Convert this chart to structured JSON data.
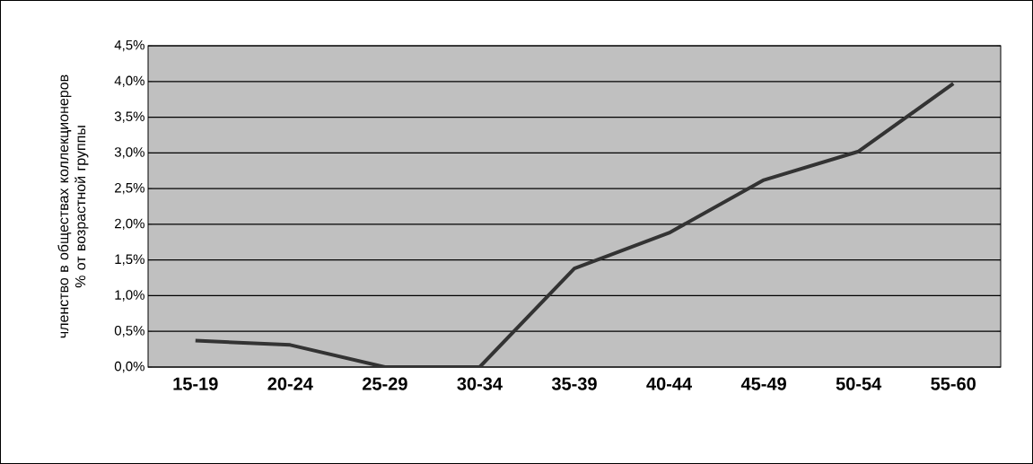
{
  "chart_data": {
    "type": "line",
    "ylabel": "членство в обществах коллекционеров % от возрастной группы",
    "categories": [
      "15-19",
      "20-24",
      "25-29",
      "30-34",
      "35-39",
      "40-44",
      "45-49",
      "50-54",
      "55-60"
    ],
    "series": [
      {
        "color": "#333333",
        "values": [
          0.37,
          0.31,
          0,
          0,
          1.38,
          1.88,
          2.62,
          3.02,
          3.97
        ]
      }
    ],
    "ylim": [
      0,
      4.5
    ],
    "yticks": [
      {
        "value": 0,
        "label": "0,0%"
      },
      {
        "value": 0.5,
        "label": "0,5%"
      },
      {
        "value": 1,
        "label": "1,0%"
      },
      {
        "value": 1.5,
        "label": "1,5%"
      },
      {
        "value": 2,
        "label": "2,0%"
      },
      {
        "value": 2.5,
        "label": "2,5%"
      },
      {
        "value": 3,
        "label": "3,0%"
      },
      {
        "value": 3.5,
        "label": "3,5%"
      },
      {
        "value": 4,
        "label": "4,0%"
      },
      {
        "value": 4.5,
        "label": "4,5%"
      }
    ],
    "grid": "y",
    "marker": "none",
    "line_style": "solid"
  }
}
